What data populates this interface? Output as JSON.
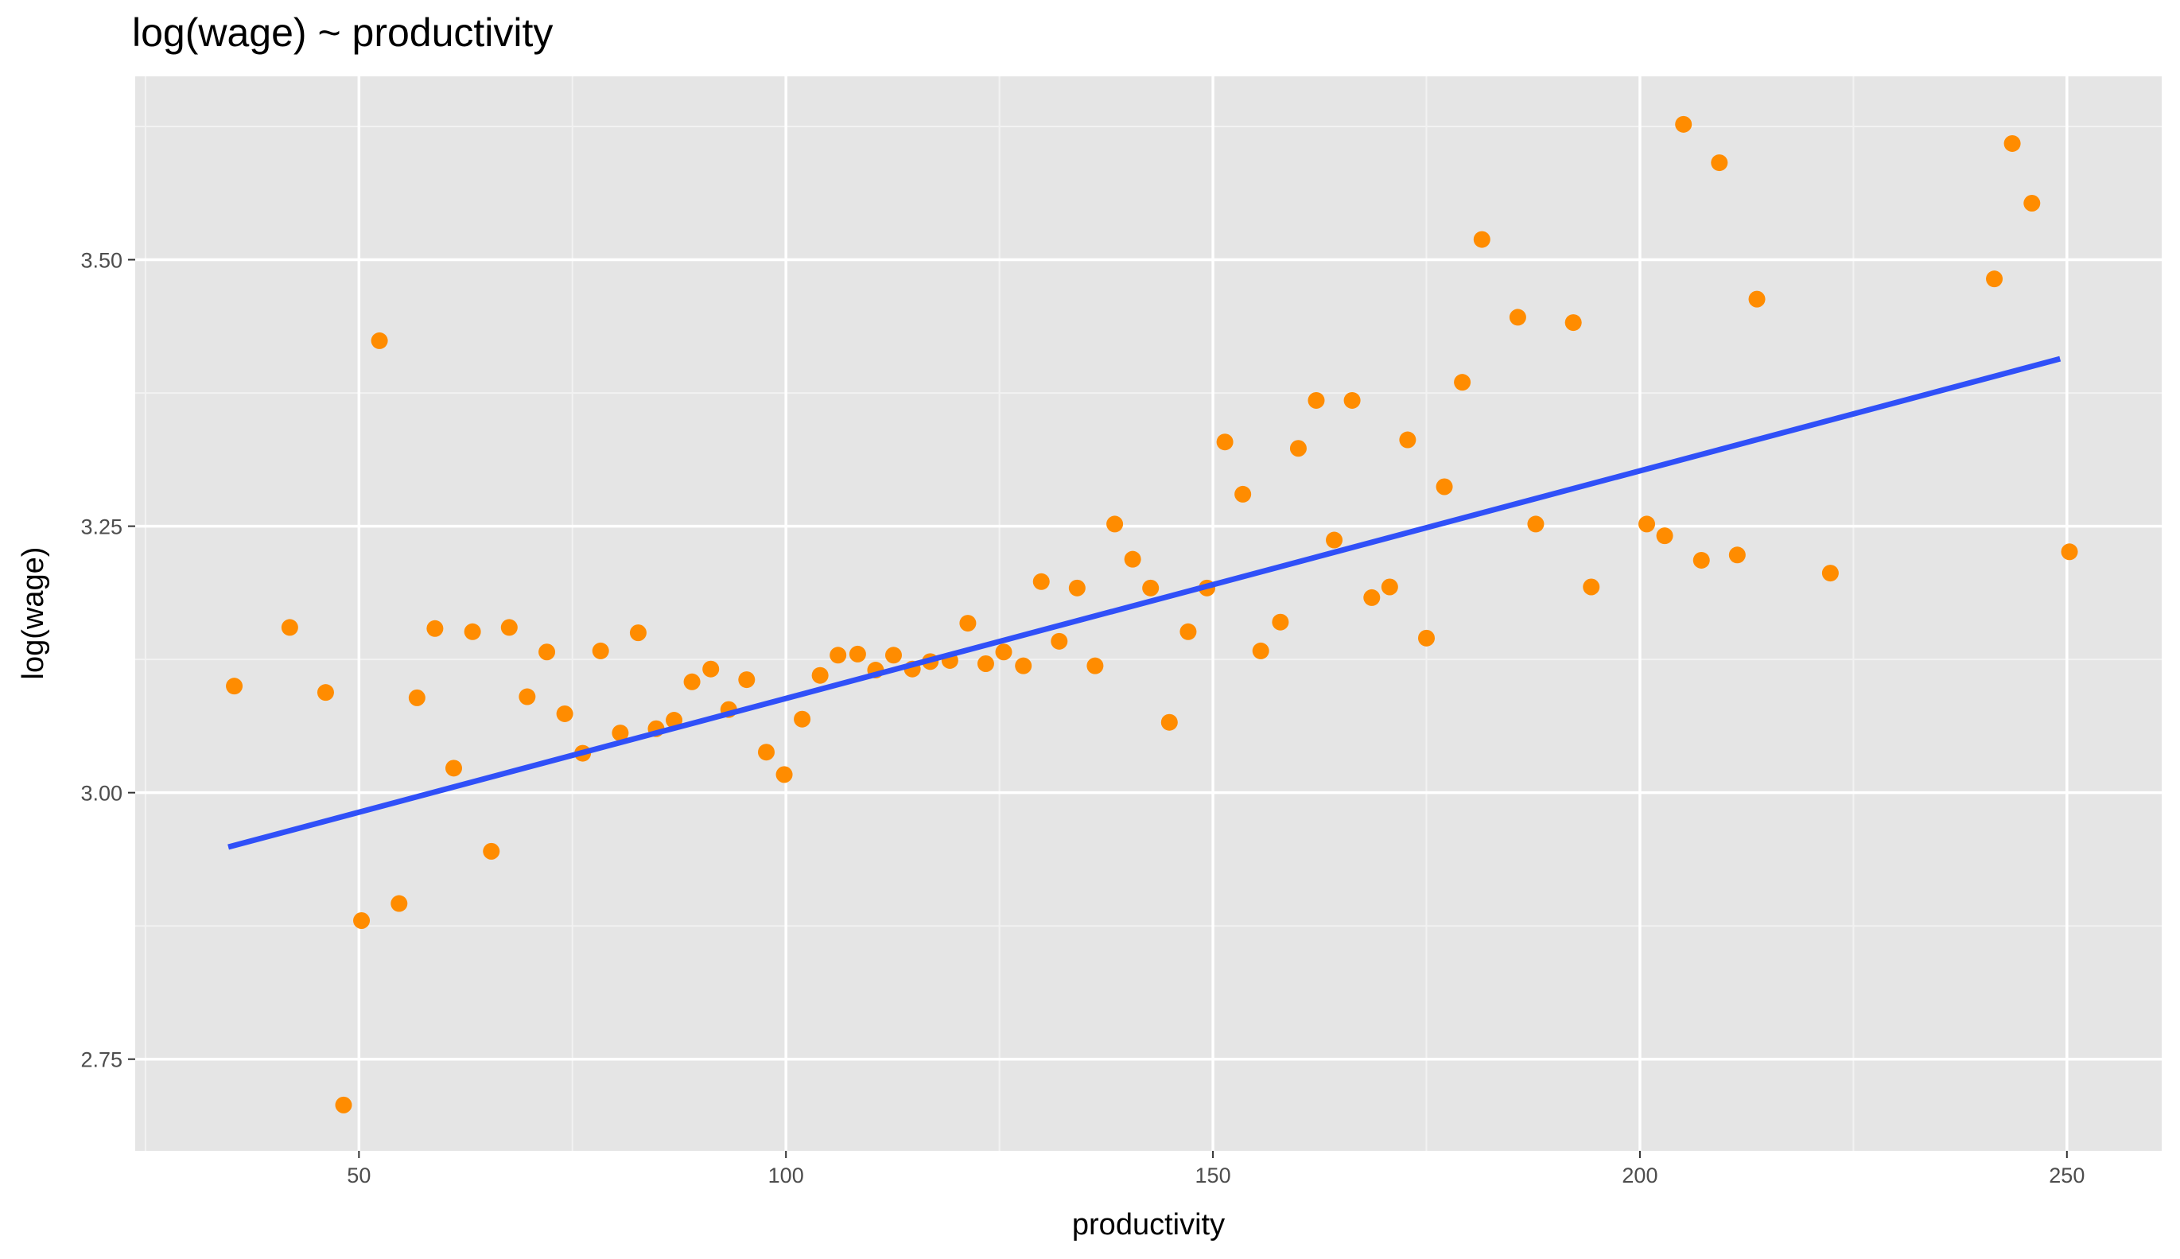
{
  "chart_data": {
    "type": "scatter",
    "title": "log(wage) ~ productivity",
    "x_label": "productivity",
    "y_label": "log(wage)",
    "xlim": [
      23.8,
      261.1
    ],
    "ylim": [
      2.664,
      3.672
    ],
    "xticks": [
      50,
      100,
      150,
      200,
      250
    ],
    "yticks": [
      2.75,
      {
        "value": 3.0,
        "label": "3.00"
      },
      3.25,
      {
        "value": 3.5,
        "label": "3.50"
      }
    ],
    "grid": true,
    "series": [
      {
        "color": "#ff8c00",
        "x": [
          35.4,
          41.9,
          46.1,
          48.2,
          50.3,
          52.4,
          54.7,
          56.8,
          58.9,
          61.1,
          63.3,
          65.5,
          67.6,
          69.7,
          72.0,
          74.1,
          76.2,
          78.3,
          80.6,
          82.7,
          84.8,
          86.9,
          89.0,
          91.2,
          93.3,
          95.4,
          97.7,
          99.8,
          101.9,
          104.0,
          106.1,
          108.4,
          110.5,
          112.6,
          114.8,
          116.9,
          119.2,
          121.3,
          123.4,
          125.5,
          127.8,
          129.9,
          132.0,
          134.1,
          136.2,
          138.5,
          140.6,
          142.7,
          144.9,
          147.1,
          149.3,
          151.4,
          153.5,
          155.6,
          157.9,
          160.0,
          162.1,
          164.2,
          166.3,
          168.6,
          170.7,
          172.8,
          175.0,
          177.1,
          179.2,
          181.5,
          185.7,
          187.8,
          192.2,
          194.3,
          200.8,
          202.9,
          205.1,
          207.2,
          209.3,
          211.4,
          213.7,
          222.3,
          241.5,
          243.6,
          245.9,
          250.3
        ],
        "values": [
          3.1,
          3.155,
          3.094,
          2.707,
          2.88,
          3.424,
          2.896,
          3.089,
          3.154,
          3.023,
          3.151,
          2.945,
          3.155,
          3.09,
          3.132,
          3.074,
          3.037,
          3.133,
          3.056,
          3.15,
          3.06,
          3.068,
          3.104,
          3.116,
          3.078,
          3.106,
          3.038,
          3.017,
          3.069,
          3.11,
          3.129,
          3.13,
          3.115,
          3.129,
          3.116,
          3.123,
          3.124,
          3.159,
          3.121,
          3.132,
          3.119,
          3.198,
          3.142,
          3.192,
          3.119,
          3.252,
          3.219,
          3.192,
          3.066,
          3.151,
          3.192,
          3.329,
          3.28,
          3.133,
          3.16,
          3.323,
          3.368,
          3.237,
          3.368,
          3.183,
          3.193,
          3.331,
          3.145,
          3.287,
          3.385,
          3.519,
          3.446,
          3.252,
          3.441,
          3.193,
          3.252,
          3.241,
          3.627,
          3.218,
          3.591,
          3.223,
          3.463,
          3.206,
          3.482,
          3.609,
          3.553,
          3.226
        ]
      }
    ],
    "fit": {
      "color": "#3050f8",
      "x": [
        34.7,
        249.2
      ],
      "values": [
        2.949,
        3.407
      ]
    }
  }
}
